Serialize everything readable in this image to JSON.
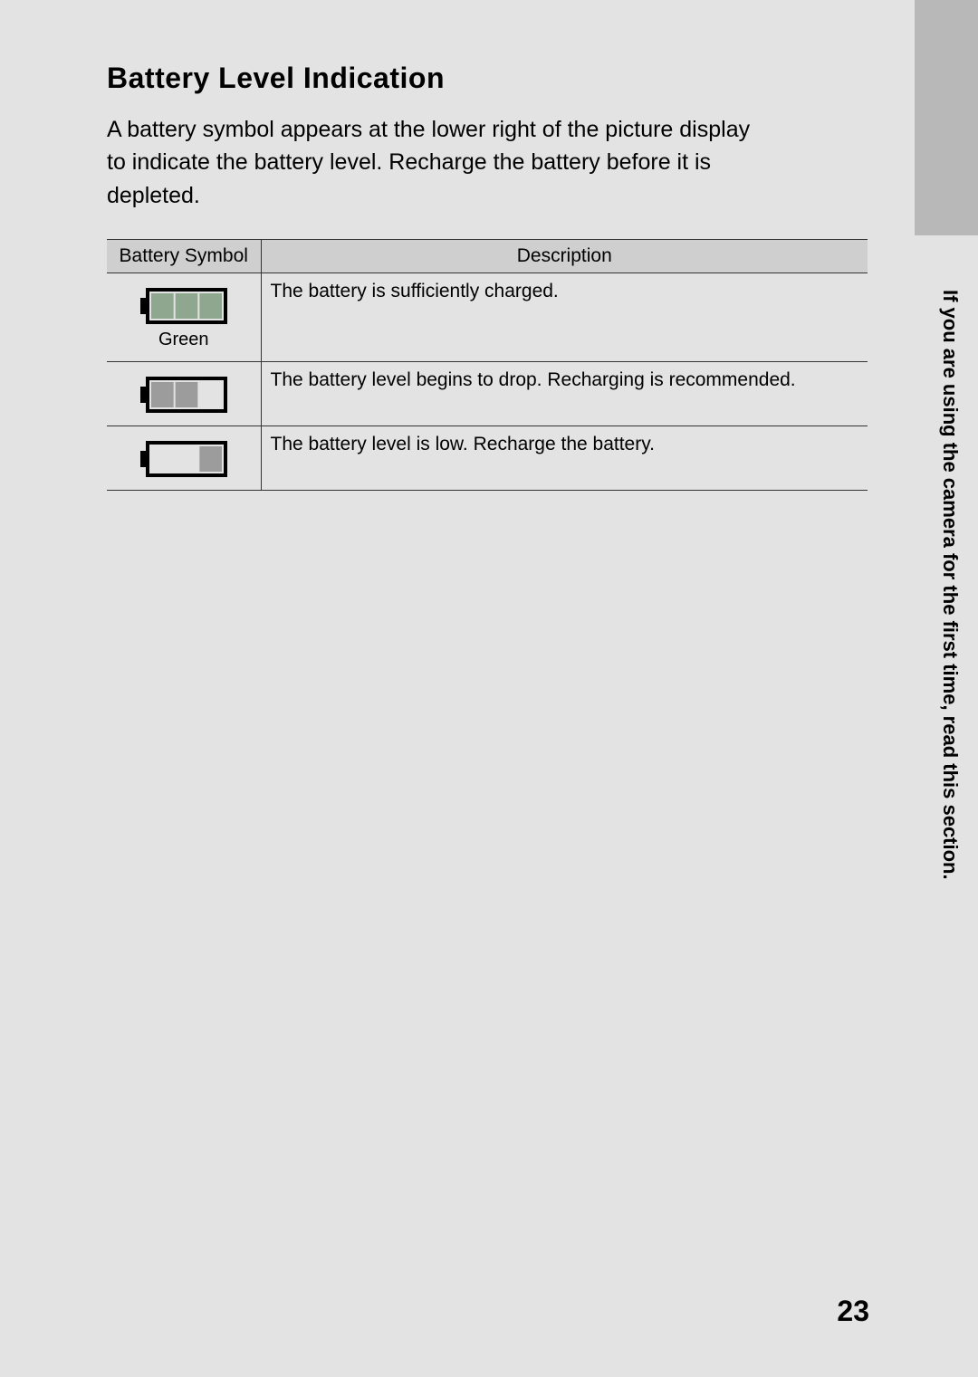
{
  "sidebar": {
    "vertical_note": "If you are using the camera for the first time, read this section."
  },
  "heading": "Battery Level Indication",
  "intro": "A battery symbol appears at the lower right of the picture display to indicate the battery level. Recharge the battery before it is depleted.",
  "table": {
    "col_symbol": "Battery Symbol",
    "col_desc": "Description",
    "rows": [
      {
        "caption": "Green",
        "description": "The battery is sufficiently charged.",
        "icon": {
          "segments": 3,
          "fill_color": "#8fa78f",
          "body_fill": "#e3e3e3",
          "outline": "#000000"
        }
      },
      {
        "caption": "",
        "description": "The battery level begins to drop. Recharging is recommended.",
        "icon": {
          "segments": 2,
          "fill_color": "#9c9c9c",
          "body_fill": "#e3e3e3",
          "outline": "#000000"
        }
      },
      {
        "caption": "",
        "description": "The battery level is low. Recharge the battery.",
        "icon": {
          "segments": 1,
          "fill_color": "#9c9c9c",
          "body_fill": "#e3e3e3",
          "outline": "#000000"
        }
      }
    ]
  },
  "page_number": "23",
  "colors": {
    "page_bg": "#e3e3e3",
    "tab_bg": "#b8b8b8",
    "th_bg": "#cfcfcf",
    "border": "#333333",
    "text": "#000000"
  }
}
